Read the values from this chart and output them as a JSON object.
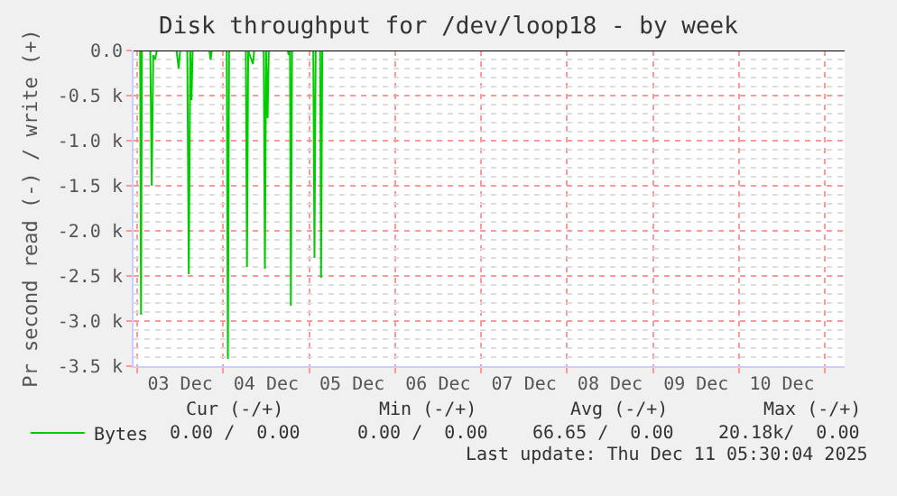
{
  "chart_data": {
    "type": "line",
    "title": "Disk throughput for /dev/loop18 - by week",
    "ylabel": "Pr second read (-) / write (+)",
    "x": [
      "2025-12-02T23:00",
      "2025-12-03T00:50",
      "2025-12-03T01:05",
      "2025-12-03T01:20",
      "2025-12-03T03:40",
      "2025-12-03T04:05",
      "2025-12-03T04:30",
      "2025-12-03T05:00",
      "2025-12-03T05:30",
      "2025-12-03T11:00",
      "2025-12-03T11:35",
      "2025-12-03T12:00",
      "2025-12-03T14:00",
      "2025-12-03T14:25",
      "2025-12-03T14:50",
      "2025-12-03T15:10",
      "2025-12-03T15:30",
      "2025-12-03T20:10",
      "2025-12-03T20:30",
      "2025-12-03T20:50",
      "2025-12-04T01:00",
      "2025-12-04T01:20",
      "2025-12-04T01:40",
      "2025-12-04T06:20",
      "2025-12-04T06:40",
      "2025-12-04T07:00",
      "2025-12-04T08:20",
      "2025-12-04T08:40",
      "2025-12-04T11:20",
      "2025-12-04T11:40",
      "2025-12-04T12:00",
      "2025-12-04T12:25",
      "2025-12-04T12:45",
      "2025-12-04T18:00",
      "2025-12-04T18:20",
      "2025-12-04T18:40",
      "2025-12-04T18:55",
      "2025-12-04T19:15",
      "2025-12-05T01:10",
      "2025-12-05T01:30",
      "2025-12-05T01:50",
      "2025-12-05T03:05",
      "2025-12-05T03:20",
      "2025-12-05T03:40",
      "2025-12-05T04:00"
    ],
    "series": [
      {
        "name": "Bytes",
        "color": "#00cc00",
        "values": [
          0,
          0,
          -2.93,
          0,
          0,
          -1.5,
          -0.05,
          -0.1,
          0,
          0,
          -0.2,
          0,
          0,
          -2.48,
          0,
          -0.55,
          0,
          0,
          -0.1,
          0,
          0,
          -3.42,
          0,
          0,
          -2.4,
          0,
          -0.15,
          0,
          0,
          -2.42,
          0,
          -0.75,
          0,
          0,
          -0.05,
          0,
          -2.83,
          0,
          0,
          -2.3,
          0,
          0,
          -2.52,
          0,
          0
        ]
      }
    ],
    "xlim": [
      "2025-12-02T23:00",
      "2025-12-11T05:30"
    ],
    "xticks": [
      {
        "value": "2025-12-03T12:00",
        "label": "03 Dec"
      },
      {
        "value": "2025-12-04T12:00",
        "label": "04 Dec"
      },
      {
        "value": "2025-12-05T12:00",
        "label": "05 Dec"
      },
      {
        "value": "2025-12-06T12:00",
        "label": "06 Dec"
      },
      {
        "value": "2025-12-07T12:00",
        "label": "07 Dec"
      },
      {
        "value": "2025-12-08T12:00",
        "label": "08 Dec"
      },
      {
        "value": "2025-12-09T12:00",
        "label": "09 Dec"
      },
      {
        "value": "2025-12-10T12:00",
        "label": "10 Dec"
      }
    ],
    "ylim": [
      -3.5,
      0
    ],
    "yticks": [
      {
        "value": 0,
        "label": "0.0"
      },
      {
        "value": -0.5,
        "label": "-0.5 k"
      },
      {
        "value": -1.0,
        "label": "-1.0 k"
      },
      {
        "value": -1.5,
        "label": "-1.5 k"
      },
      {
        "value": -2.0,
        "label": "-2.0 k"
      },
      {
        "value": -2.5,
        "label": "-2.5 k"
      },
      {
        "value": -3.0,
        "label": "-3.0 k"
      },
      {
        "value": -3.5,
        "label": "-3.5 k"
      }
    ],
    "ref_lines": [
      {
        "axis": "y",
        "value": 0,
        "color": "#000000"
      }
    ],
    "annotations": [
      "Cur (-/+)",
      "Min (-/+)",
      "Avg (-/+)",
      "Max (-/+)",
      "0.00 /  0.00",
      "0.00 /  0.00",
      "66.65 /  0.00",
      "20.18k/  0.00",
      "Last update: Thu Dec 11 05:30:04 2025"
    ],
    "grid": true,
    "legend": "bottom left",
    "marker": "none",
    "line_style": "solid"
  }
}
